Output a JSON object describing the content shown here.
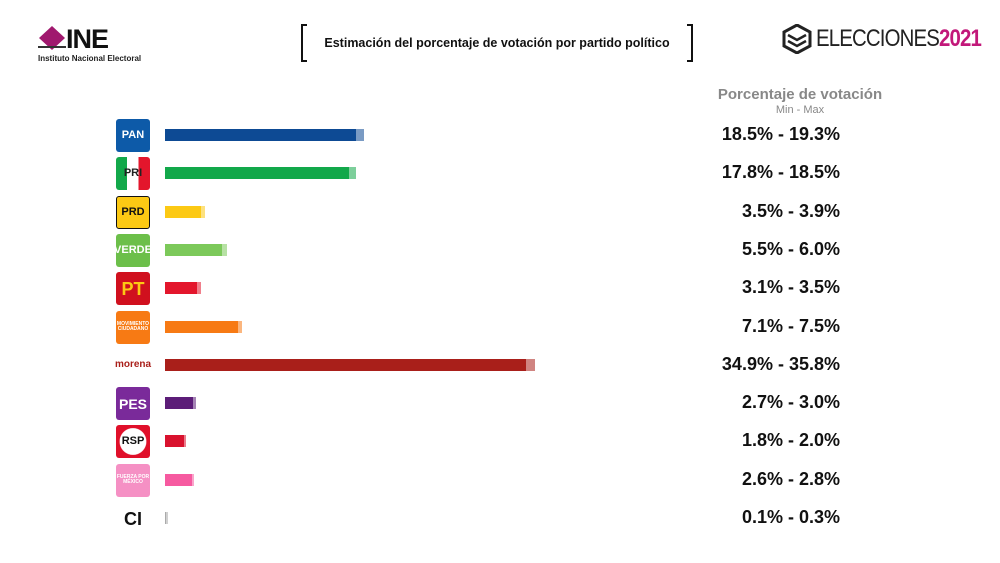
{
  "header": {
    "ine_logo": "INE",
    "ine_subtitle": "Instituto Nacional Electoral",
    "title": "Estimación del porcentaje de votación por partido político",
    "elecciones_logo": "ELECCIONES",
    "elecciones_year": "2021",
    "column_title": "Porcentaje de votación",
    "column_subtitle": "Min - Max"
  },
  "chart_data": {
    "type": "bar",
    "orientation": "horizontal",
    "title": "Estimación del porcentaje de votación por partido político",
    "categories": [
      "PAN",
      "PRI",
      "PRD",
      "VERDE",
      "PT",
      "MOVIMIENTO CIUDADANO",
      "morena",
      "PES",
      "RSP",
      "FUERZA POR MÉXICO",
      "CI"
    ],
    "series": [
      {
        "name": "Min",
        "values": [
          18.5,
          17.8,
          3.5,
          5.5,
          3.1,
          7.1,
          34.9,
          2.7,
          1.8,
          2.6,
          0.1
        ]
      },
      {
        "name": "Max",
        "values": [
          19.3,
          18.5,
          3.9,
          6.0,
          3.5,
          7.5,
          35.8,
          3.0,
          2.0,
          2.8,
          0.3
        ]
      }
    ],
    "labels": [
      "18.5% - 19.3%",
      "17.8% - 18.5%",
      "3.5% - 3.9%",
      "5.5% - 6.0%",
      "3.1% - 3.5%",
      "7.1% - 7.5%",
      "34.9% - 35.8%",
      "2.7% - 3.0%",
      "1.8% - 2.0%",
      "2.6% - 2.8%",
      "0.1% - 0.3%"
    ],
    "colors": [
      "#0d4a94",
      "#12a84a",
      "#fcc914",
      "#7cc95a",
      "#e3162c",
      "#f77a14",
      "#a91f1a",
      "#5c1d78",
      "#d9122e",
      "#f65aa0",
      "#aaaaaa"
    ],
    "logo_colors": [
      "#0d5aa8",
      "#eeeeee",
      "#fcc914",
      "#6cbf4a",
      "#d0101e",
      "#f77a14",
      "#ffffff",
      "#7a2a9a",
      "#e0102a",
      "#f590c4",
      "#ffffff"
    ],
    "logo_text": [
      "PAN",
      "PRI",
      "PRD",
      "VERDE",
      "PT",
      "MOVIMIENTO CIUDADANO",
      "morena",
      "PES",
      "RSP",
      "FUERZA POR MÉXICO",
      "CI"
    ],
    "xlim": [
      0,
      36
    ],
    "grid": false,
    "legend": "none"
  }
}
